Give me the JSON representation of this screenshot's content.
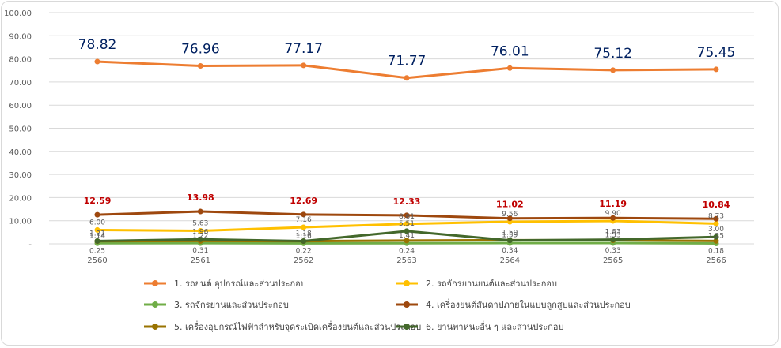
{
  "chart_data": {
    "type": "line",
    "categories": [
      "2560",
      "2561",
      "2562",
      "2563",
      "2564",
      "2565",
      "2566"
    ],
    "ylim": [
      0,
      100
    ],
    "y_ticks": [
      "-",
      "10.00",
      "20.00",
      "30.00",
      "40.00",
      "50.00",
      "60.00",
      "70.00",
      "80.00",
      "90.00",
      "100.00"
    ],
    "grid": true,
    "legend_position": "bottom",
    "series": [
      {
        "name": "1. รถยนต์ อุปกรณ์และส่วนประกอบ",
        "color": "#ed7d31",
        "values": [
          78.82,
          76.96,
          77.17,
          71.77,
          76.01,
          75.12,
          75.45
        ],
        "labels": [
          "78.82",
          "76.96",
          "77.17",
          "71.77",
          "76.01",
          "75.12",
          "75.45"
        ]
      },
      {
        "name": "2. รถจักรยานยนต์และส่วนประกอบ",
        "color": "#ffc000",
        "values": [
          6.0,
          5.63,
          7.16,
          8.61,
          9.56,
          9.9,
          8.73
        ],
        "labels": [
          "6.00",
          "5.63",
          "7.16",
          "8.61",
          "9.56",
          "9.90",
          "8.73"
        ]
      },
      {
        "name": "3. รถจักรยานและส่วนประกอบ",
        "color": "#70ad47",
        "values": [
          0.25,
          0.31,
          0.22,
          0.24,
          0.34,
          0.33,
          0.18
        ],
        "labels": [
          "0.25",
          "0.31",
          "0.22",
          "0.24",
          "0.34",
          "0.33",
          "0.18"
        ]
      },
      {
        "name": "4. เครื่องยนต์สันดาปภายในแบบลูกสูบและส่วนประกอบ",
        "color": "#9e480e",
        "values": [
          12.59,
          13.98,
          12.69,
          12.33,
          11.02,
          11.19,
          10.84
        ],
        "labels": [
          "12.59",
          "13.98",
          "12.69",
          "12.33",
          "11.02",
          "11.19",
          "10.84"
        ]
      },
      {
        "name": "5. เครื่องอุปกรณ์ไฟฟ้าสำหรับจุดระเบิดเครื่องยนต์และส่วนประกอบ",
        "color": "#997300",
        "values": [
          1.14,
          1.22,
          1.16,
          1.41,
          1.59,
          1.53,
          1.25
        ],
        "labels": [
          "1.14",
          "1.22",
          "1.16",
          "1.41",
          "1.59",
          "1.53",
          "1.25"
        ]
      },
      {
        "name": "6. ยานพาหนะอื่น ๆ และส่วนประกอบ",
        "color": "#43682b",
        "values": [
          1.21,
          1.96,
          1.18,
          5.51,
          1.5,
          1.83,
          3.0
        ],
        "labels": [
          "1.21",
          "1.96",
          "1.18",
          "5.51",
          "1.50",
          "1.83",
          "3.00"
        ]
      }
    ]
  },
  "colors": {
    "label_series1": "#002060",
    "label_series4": "#c00000",
    "label_small": "#595959",
    "grid": "#d9d9d9",
    "axis_text": "#595959"
  }
}
